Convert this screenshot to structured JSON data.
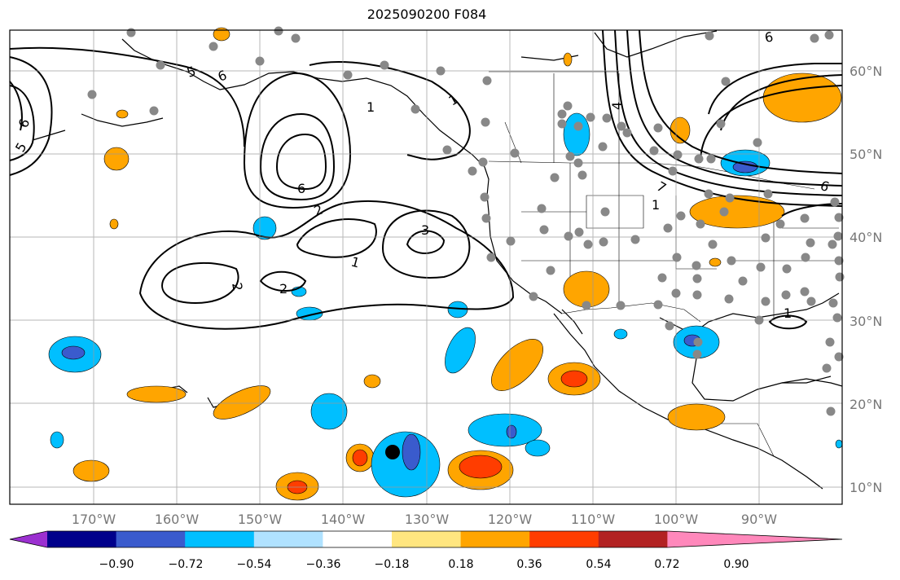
{
  "title": "2025090200 F084",
  "map": {
    "projection": "equirectangular",
    "lon_range": [
      -180,
      -80
    ],
    "lat_range": [
      8,
      65
    ],
    "gridlines": "on"
  },
  "lon_labels": [
    "170°W",
    "160°W",
    "150°W",
    "140°W",
    "130°W",
    "120°W",
    "110°W",
    "100°W",
    "90°W"
  ],
  "lat_labels": [
    "10°N",
    "20°N",
    "30°N",
    "40°N",
    "50°N",
    "60°N"
  ],
  "colorbar": {
    "ticks": [
      "−0.90",
      "−0.72",
      "−0.54",
      "−0.36",
      "−0.18",
      "0.18",
      "0.36",
      "0.54",
      "0.72",
      "0.90"
    ],
    "colors": [
      "#9b30d0",
      "#00008b",
      "#3a5bcd",
      "#00bfff",
      "#b0e2ff",
      "#ffffff",
      "#ffe680",
      "#ffa500",
      "#ff3d00",
      "#b22222",
      "#ff88bb"
    ]
  },
  "contour_labels": [
    "1",
    "1",
    "1",
    "2",
    "2",
    "2",
    "3",
    "5",
    "6",
    "6",
    "6",
    "6",
    "5",
    "4",
    "7",
    "1",
    "6",
    "1"
  ],
  "colors": {
    "contour": "#000000",
    "station": "#888888",
    "grid": "#999999",
    "land_border": "#000000"
  }
}
